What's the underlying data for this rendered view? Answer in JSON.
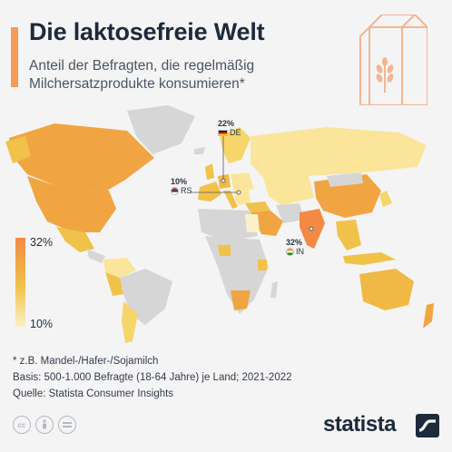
{
  "header": {
    "title": "Die laktosefreie Welt",
    "subtitle": "Anteil der Befragten, die regelmäßig Milchersatzprodukte konsumieren*"
  },
  "chart_data": {
    "type": "map",
    "title": "Die laktosefreie Welt",
    "subtitle": "Anteil der Befragten, die regelmäßig Milchersatzprodukte konsumieren*",
    "unit": "%",
    "scale": {
      "min": 10,
      "max": 32,
      "min_label": "10%",
      "max_label": "32%"
    },
    "highlighted": [
      {
        "code": "DE",
        "value": 22,
        "label": "22%"
      },
      {
        "code": "RS",
        "value": 10,
        "label": "10%"
      },
      {
        "code": "IN",
        "value": 32,
        "label": "32%"
      }
    ],
    "colors": {
      "high": "#f28a45",
      "mid": "#f0c24a",
      "low": "#fbf1c8",
      "no_data": "#d6d6d6"
    }
  },
  "footer": {
    "note1": "* z.B. Mandel-/Hafer-/Sojamilch",
    "note2": "Basis: 500-1.000 Befragte (18-64 Jahre) je Land; 2021-2022",
    "source": "Quelle: Statista Consumer Insights",
    "brand": "statista",
    "license_icons": [
      "cc",
      "by",
      "nd"
    ]
  }
}
